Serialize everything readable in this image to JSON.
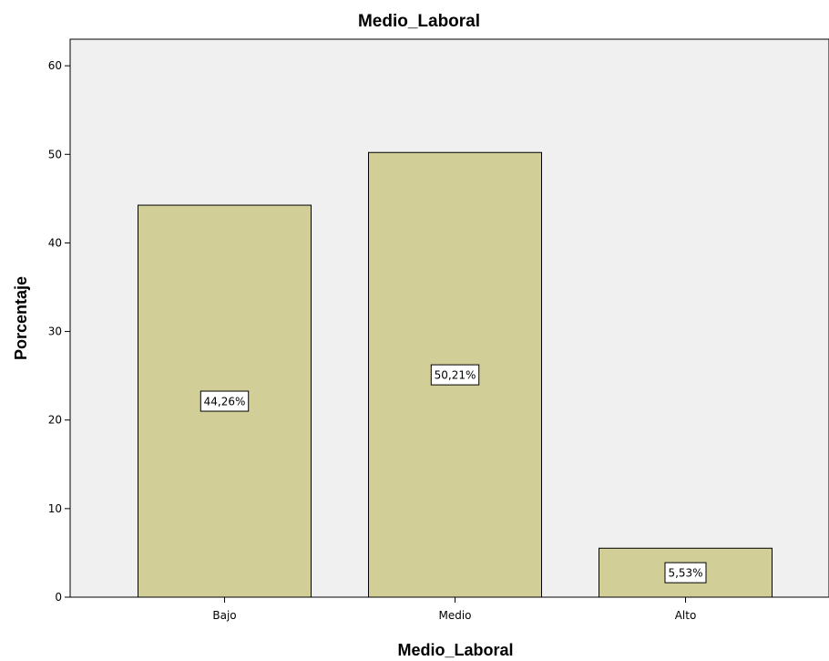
{
  "chart_data": {
    "type": "bar",
    "title": "Medio_Laboral",
    "xlabel": "Medio_Laboral",
    "ylabel": "Porcentaje",
    "categories": [
      "Bajo",
      "Medio",
      "Alto"
    ],
    "values": [
      44.26,
      50.21,
      5.53
    ],
    "data_labels": [
      "44,26%",
      "50,21%",
      "5,53%"
    ],
    "ylim": [
      0,
      63
    ],
    "yticks": [
      0,
      10,
      20,
      30,
      40,
      50,
      60
    ],
    "grid": false,
    "legend": "none",
    "colors": {
      "bar_fill": "#D2CE98",
      "bar_stroke": "#000000",
      "plot_background": "#F0F0F0",
      "label_box_fill": "#FFFFFF"
    }
  }
}
